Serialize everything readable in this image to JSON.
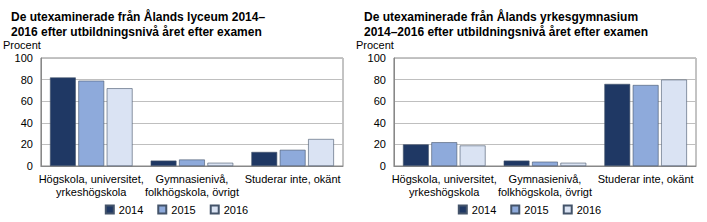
{
  "chart_data": [
    {
      "type": "bar",
      "title": "De utexaminerade från Ålands lyceum 2014–\n2016 efter utbildningsnivå året efter examen",
      "y_label": "Procent",
      "categories": [
        "Högskola, universitet,\nyrkeshögskola",
        "Gymnasienivå,\nfolkhögskola, övrigt",
        "Studerar inte, okänt"
      ],
      "series": [
        {
          "name": "2014",
          "color": "#1f3864",
          "values": [
            82,
            5,
            13
          ]
        },
        {
          "name": "2015",
          "color": "#8eaadb",
          "values": [
            79,
            6,
            15
          ]
        },
        {
          "name": "2016",
          "color": "#dae3f3",
          "values": [
            72,
            3,
            25
          ]
        }
      ],
      "ylim": [
        0,
        100
      ],
      "yticks": [
        0,
        20,
        40,
        60,
        80,
        100
      ],
      "grid": true,
      "legend": "bottom"
    },
    {
      "type": "bar",
      "title": "De utexaminerade från Ålands yrkesgymnasium\n2014–2016 efter utbildningsnivå året efter examen",
      "y_label": "Procent",
      "categories": [
        "Högskola, universitet,\nyrkeshögskola",
        "Gymnasienivå,\nfolkhögskola, övrigt",
        "Studerar inte, okänt"
      ],
      "series": [
        {
          "name": "2014",
          "color": "#1f3864",
          "values": [
            20,
            5,
            76
          ]
        },
        {
          "name": "2015",
          "color": "#8eaadb",
          "values": [
            22,
            4,
            75
          ]
        },
        {
          "name": "2016",
          "color": "#dae3f3",
          "values": [
            19,
            3,
            80
          ]
        }
      ],
      "ylim": [
        0,
        100
      ],
      "yticks": [
        0,
        20,
        40,
        60,
        80,
        100
      ],
      "grid": true,
      "legend": "bottom"
    }
  ]
}
